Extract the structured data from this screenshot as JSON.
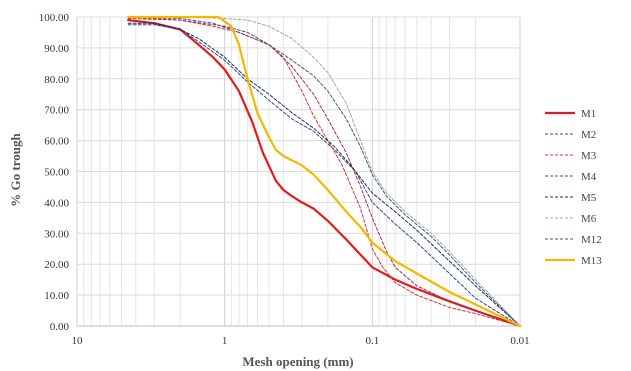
{
  "chart_data": {
    "type": "line",
    "xlabel": "Mesh opening (mm)",
    "ylabel": "% Go trough",
    "x_scale": "log",
    "x_reversed": true,
    "xlim": [
      10,
      0.01
    ],
    "ylim": [
      0,
      100
    ],
    "x_ticks": [
      "10",
      "1",
      "0.1",
      "0.01"
    ],
    "y_ticks": [
      "0.00",
      "10.00",
      "20.00",
      "30.00",
      "40.00",
      "50.00",
      "60.00",
      "70.00",
      "80.00",
      "90.00",
      "100.00"
    ],
    "grid": true,
    "legend_position": "right",
    "series": [
      {
        "name": "M1",
        "color": "#e31a1c",
        "style": "solid",
        "width": 2.2,
        "points": [
          [
            4.5,
            99
          ],
          [
            3,
            98
          ],
          [
            2,
            96
          ],
          [
            1.5,
            91
          ],
          [
            1.2,
            87
          ],
          [
            1,
            83
          ],
          [
            0.8,
            76
          ],
          [
            0.65,
            66
          ],
          [
            0.55,
            56
          ],
          [
            0.45,
            47
          ],
          [
            0.4,
            44
          ],
          [
            0.35,
            42
          ],
          [
            0.3,
            40
          ],
          [
            0.25,
            38
          ],
          [
            0.2,
            34
          ],
          [
            0.15,
            28
          ],
          [
            0.1,
            19
          ],
          [
            0.07,
            15
          ],
          [
            0.05,
            12
          ],
          [
            0.03,
            8
          ],
          [
            0.02,
            5
          ],
          [
            0.01,
            0
          ]
        ]
      },
      {
        "name": "M2",
        "color": "#2b4b8c",
        "style": "dashed",
        "width": 1,
        "points": [
          [
            4.5,
            97.5
          ],
          [
            3,
            97.5
          ],
          [
            2,
            96
          ],
          [
            1.5,
            92
          ],
          [
            1,
            86
          ],
          [
            0.7,
            79
          ],
          [
            0.5,
            73
          ],
          [
            0.35,
            67
          ],
          [
            0.25,
            63
          ],
          [
            0.18,
            57
          ],
          [
            0.13,
            50
          ],
          [
            0.1,
            40
          ],
          [
            0.07,
            33
          ],
          [
            0.05,
            27
          ],
          [
            0.03,
            17
          ],
          [
            0.02,
            9
          ],
          [
            0.01,
            0
          ]
        ]
      },
      {
        "name": "M3",
        "color": "#e03030",
        "style": "dashed",
        "width": 1,
        "points": [
          [
            4.5,
            100
          ],
          [
            2,
            99
          ],
          [
            1.2,
            97
          ],
          [
            0.8,
            95
          ],
          [
            0.5,
            91
          ],
          [
            0.4,
            87
          ],
          [
            0.3,
            76
          ],
          [
            0.25,
            68
          ],
          [
            0.2,
            60
          ],
          [
            0.16,
            52
          ],
          [
            0.12,
            38
          ],
          [
            0.1,
            25
          ],
          [
            0.085,
            19
          ],
          [
            0.07,
            14
          ],
          [
            0.05,
            10
          ],
          [
            0.03,
            6
          ],
          [
            0.02,
            4
          ],
          [
            0.01,
            0
          ]
        ]
      },
      {
        "name": "M4",
        "color": "#a0304a",
        "style": "dashed",
        "width": 1,
        "points": [
          [
            4.5,
            99.5
          ],
          [
            2,
            99
          ],
          [
            1,
            97
          ],
          [
            0.7,
            95
          ],
          [
            0.5,
            91
          ],
          [
            0.35,
            84
          ],
          [
            0.25,
            75
          ],
          [
            0.2,
            67
          ],
          [
            0.15,
            56
          ],
          [
            0.12,
            45
          ],
          [
            0.1,
            35
          ],
          [
            0.08,
            24
          ],
          [
            0.07,
            19
          ],
          [
            0.05,
            13
          ],
          [
            0.03,
            8
          ],
          [
            0.02,
            5
          ],
          [
            0.01,
            0
          ]
        ]
      },
      {
        "name": "M5",
        "color": "#1e3050",
        "style": "dashed",
        "width": 1,
        "points": [
          [
            4.5,
            98
          ],
          [
            3,
            98
          ],
          [
            2,
            96
          ],
          [
            1.5,
            93
          ],
          [
            1,
            87
          ],
          [
            0.7,
            80
          ],
          [
            0.5,
            75
          ],
          [
            0.35,
            69
          ],
          [
            0.25,
            64
          ],
          [
            0.18,
            58
          ],
          [
            0.14,
            52
          ],
          [
            0.1,
            43
          ],
          [
            0.07,
            37
          ],
          [
            0.05,
            31
          ],
          [
            0.03,
            21
          ],
          [
            0.02,
            13
          ],
          [
            0.01,
            0
          ]
        ]
      },
      {
        "name": "M6",
        "color": "#a8a890",
        "style": "dashed",
        "width": 1,
        "points": [
          [
            4.5,
            100
          ],
          [
            2,
            100
          ],
          [
            1,
            99.5
          ],
          [
            0.7,
            99
          ],
          [
            0.5,
            97
          ],
          [
            0.35,
            93
          ],
          [
            0.25,
            87
          ],
          [
            0.2,
            82
          ],
          [
            0.15,
            72
          ],
          [
            0.12,
            60
          ],
          [
            0.1,
            50
          ],
          [
            0.08,
            43
          ],
          [
            0.06,
            37
          ],
          [
            0.04,
            30
          ],
          [
            0.03,
            24
          ],
          [
            0.02,
            15
          ],
          [
            0.01,
            0
          ]
        ]
      },
      {
        "name": "M12",
        "color": "#3a5a8a",
        "style": "dashed",
        "width": 1,
        "points": [
          [
            4.5,
            100
          ],
          [
            2,
            99.5
          ],
          [
            1.2,
            98
          ],
          [
            0.8,
            95
          ],
          [
            0.5,
            91
          ],
          [
            0.35,
            86
          ],
          [
            0.25,
            81
          ],
          [
            0.2,
            76
          ],
          [
            0.15,
            67
          ],
          [
            0.12,
            58
          ],
          [
            0.1,
            49
          ],
          [
            0.08,
            42
          ],
          [
            0.06,
            36
          ],
          [
            0.04,
            29
          ],
          [
            0.03,
            23
          ],
          [
            0.02,
            14
          ],
          [
            0.01,
            0
          ]
        ]
      },
      {
        "name": "M13",
        "color": "#f5b800",
        "style": "solid",
        "width": 2.2,
        "points": [
          [
            4.5,
            100
          ],
          [
            2,
            100
          ],
          [
            1.1,
            100
          ],
          [
            0.9,
            97
          ],
          [
            0.8,
            91
          ],
          [
            0.7,
            80
          ],
          [
            0.6,
            69
          ],
          [
            0.5,
            61
          ],
          [
            0.45,
            57
          ],
          [
            0.4,
            55
          ],
          [
            0.3,
            52
          ],
          [
            0.25,
            49
          ],
          [
            0.2,
            44
          ],
          [
            0.15,
            37
          ],
          [
            0.12,
            32
          ],
          [
            0.1,
            27
          ],
          [
            0.07,
            21
          ],
          [
            0.05,
            17
          ],
          [
            0.03,
            11
          ],
          [
            0.02,
            7
          ],
          [
            0.01,
            0
          ]
        ]
      }
    ]
  }
}
